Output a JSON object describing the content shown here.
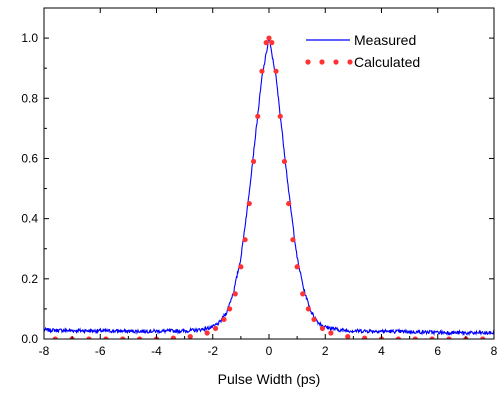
{
  "chart_data": {
    "type": "line",
    "title": "",
    "xlabel": "Pulse Width (ps)",
    "ylabel": "",
    "xlim": [
      -8,
      8
    ],
    "ylim": [
      0,
      1.1
    ],
    "x_ticks": [
      -8,
      -6,
      -4,
      -2,
      0,
      2,
      4,
      6,
      8
    ],
    "x_tick_labels": [
      "-8",
      "-6",
      "-4",
      "-2",
      "0",
      "2",
      "4",
      "6",
      "8"
    ],
    "y_ticks": [
      0.0,
      0.2,
      0.4,
      0.6,
      0.8,
      1.0
    ],
    "y_tick_labels": [
      "0.0",
      "0.2",
      "0.4",
      "0.6",
      "0.8",
      "1.0"
    ],
    "grid": false,
    "legend_position": "top-right",
    "series": [
      {
        "name": "Measured",
        "style": "solid",
        "color": "#0000ff",
        "x": [
          -8,
          -7,
          -6,
          -5,
          -4,
          -3,
          -2.5,
          -2,
          -1.75,
          -1.5,
          -1.25,
          -1,
          -0.75,
          -0.5,
          -0.25,
          0,
          0.25,
          0.5,
          0.75,
          1,
          1.25,
          1.5,
          1.75,
          2,
          2.5,
          3,
          4,
          5,
          6,
          7,
          8
        ],
        "y": [
          0.03,
          0.028,
          0.027,
          0.026,
          0.026,
          0.027,
          0.03,
          0.04,
          0.055,
          0.09,
          0.16,
          0.27,
          0.45,
          0.66,
          0.87,
          1.0,
          0.87,
          0.66,
          0.45,
          0.27,
          0.16,
          0.09,
          0.055,
          0.04,
          0.03,
          0.027,
          0.026,
          0.024,
          0.022,
          0.02,
          0.02
        ]
      },
      {
        "name": "Calculated",
        "style": "dotted",
        "color": "#ff3333",
        "x": [
          -7.6,
          -7.0,
          -6.4,
          -5.8,
          -5.2,
          -4.6,
          -4.0,
          -3.4,
          -2.8,
          -2.2,
          -1.9,
          -1.6,
          -1.4,
          -1.2,
          -1.0,
          -0.85,
          -0.7,
          -0.55,
          -0.4,
          -0.25,
          -0.1,
          0,
          0.1,
          0.25,
          0.4,
          0.55,
          0.7,
          0.85,
          1.0,
          1.2,
          1.4,
          1.6,
          1.9,
          2.2,
          2.8,
          3.4,
          4.0,
          4.6,
          5.2,
          5.8,
          6.4,
          7.0,
          7.6
        ],
        "y": [
          0.0,
          0.0,
          0.0,
          0.0,
          0.0,
          0.0,
          0.0,
          0.003,
          0.008,
          0.02,
          0.035,
          0.065,
          0.1,
          0.15,
          0.24,
          0.33,
          0.45,
          0.59,
          0.74,
          0.89,
          0.985,
          1.0,
          0.985,
          0.89,
          0.74,
          0.59,
          0.45,
          0.33,
          0.24,
          0.15,
          0.1,
          0.065,
          0.035,
          0.02,
          0.008,
          0.003,
          0.0,
          0.0,
          0.0,
          0.0,
          0.0,
          0.0,
          0.0
        ]
      }
    ]
  }
}
